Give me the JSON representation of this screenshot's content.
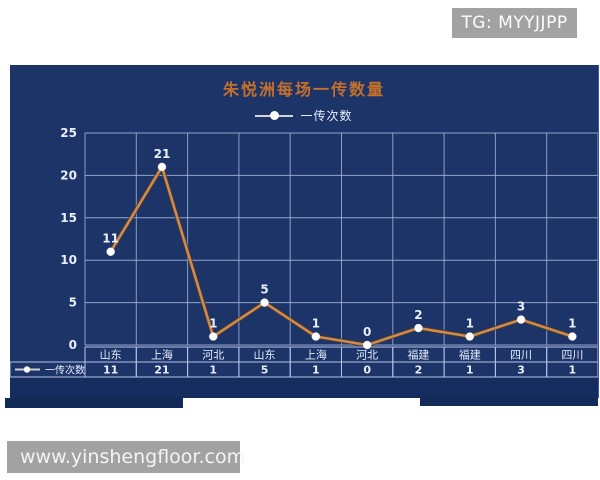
{
  "watermarks": {
    "top_right": "TG: MYYJJPP",
    "bottom_left": "www.yinshengfloor.com"
  },
  "chart": {
    "title": "朱悦洲每场一传数量",
    "legend_label": "一传次数"
  },
  "chart_data": {
    "type": "line",
    "title": "朱悦洲每场一传数量",
    "series_name": "一传次数",
    "categories": [
      "山东",
      "上海",
      "河北",
      "山东",
      "上海",
      "河北",
      "福建",
      "福建",
      "四川",
      "四川"
    ],
    "values": [
      11,
      21,
      1,
      5,
      1,
      0,
      2,
      1,
      3,
      1
    ],
    "ylim": [
      0,
      25
    ],
    "yticks": [
      0,
      5,
      10,
      15,
      20,
      25
    ],
    "grid": true,
    "legend_position": "top",
    "data_table_shown": true,
    "colors": {
      "background": "#1c3468",
      "line": "#cf8a4c",
      "line_shadow": "#4a3a28",
      "marker": "#ffffff",
      "gridline": "#a8b8dc",
      "table_border": "#b7c4e6",
      "text": "#e9eefc",
      "title": "#c4702c"
    }
  }
}
